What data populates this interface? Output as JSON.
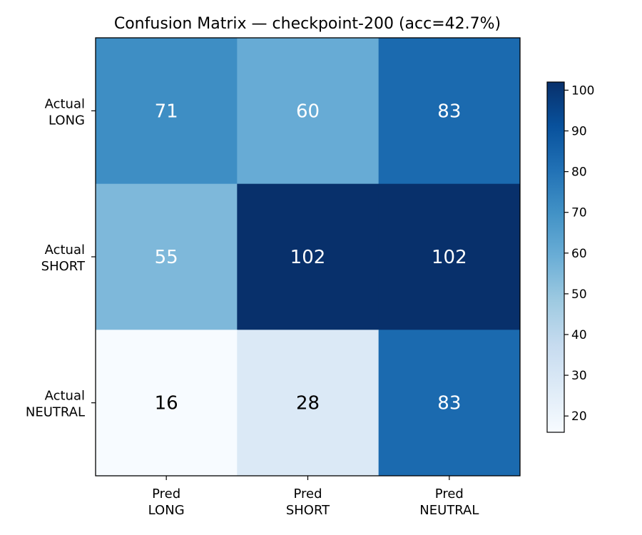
{
  "chart_data": {
    "type": "heatmap",
    "title": "Confusion Matrix — checkpoint-200 (acc=42.7%)",
    "rows": [
      {
        "line1": "Actual",
        "line2": "LONG"
      },
      {
        "line1": "Actual",
        "line2": "SHORT"
      },
      {
        "line1": "Actual",
        "line2": "NEUTRAL"
      }
    ],
    "cols": [
      {
        "line1": "Pred",
        "line2": "LONG"
      },
      {
        "line1": "Pred",
        "line2": "SHORT"
      },
      {
        "line1": "Pred",
        "line2": "NEUTRAL"
      }
    ],
    "values": [
      [
        71,
        60,
        83
      ],
      [
        55,
        102,
        102
      ],
      [
        16,
        28,
        83
      ]
    ],
    "colormap": "Blues",
    "colorbar": {
      "min": 16,
      "max": 102,
      "ticks": [
        "20",
        "30",
        "40",
        "50",
        "60",
        "70",
        "80",
        "90",
        "100"
      ]
    }
  }
}
